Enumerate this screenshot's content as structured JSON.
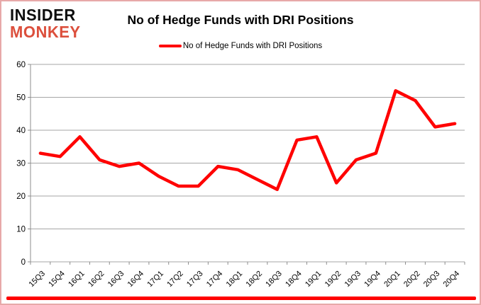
{
  "brand": {
    "line1": "INSIDER",
    "line2": "MONKEY"
  },
  "title": "No of Hedge Funds with DRI Positions",
  "legend": {
    "label": "No of Hedge Funds with DRI Positions",
    "swatch_color": "#FF0000"
  },
  "chart_data": {
    "type": "line",
    "title": "No of Hedge Funds with DRI Positions",
    "categories": [
      "15Q3",
      "15Q4",
      "16Q1",
      "16Q2",
      "16Q3",
      "16Q4",
      "17Q1",
      "17Q2",
      "17Q3",
      "17Q4",
      "18Q1",
      "18Q2",
      "18Q3",
      "18Q4",
      "19Q1",
      "19Q2",
      "19Q3",
      "19Q4",
      "20Q1",
      "20Q2",
      "20Q3",
      "20Q4"
    ],
    "series": [
      {
        "name": "No of Hedge Funds with DRI Positions",
        "values": [
          33,
          32,
          38,
          31,
          29,
          30,
          26,
          23,
          23,
          29,
          28,
          25,
          22,
          37,
          38,
          24,
          31,
          33,
          52,
          49,
          41,
          42
        ]
      }
    ],
    "ylim": [
      0,
      60
    ],
    "ytick_step": 10,
    "yticks": [
      0,
      10,
      20,
      30,
      40,
      50,
      60
    ],
    "grid": "horizontal",
    "legend_position": "top",
    "line_color": "#FF0000"
  },
  "colors": {
    "accent_red": "#FF0000",
    "brand_red": "#DC4F3C",
    "grid_gray": "#A6A6A6",
    "axis_gray": "#8C8C8C",
    "border_pink": "#E7A9A9",
    "text_black": "#000000"
  },
  "footer": {
    "bar_color": "#FF0000"
  }
}
